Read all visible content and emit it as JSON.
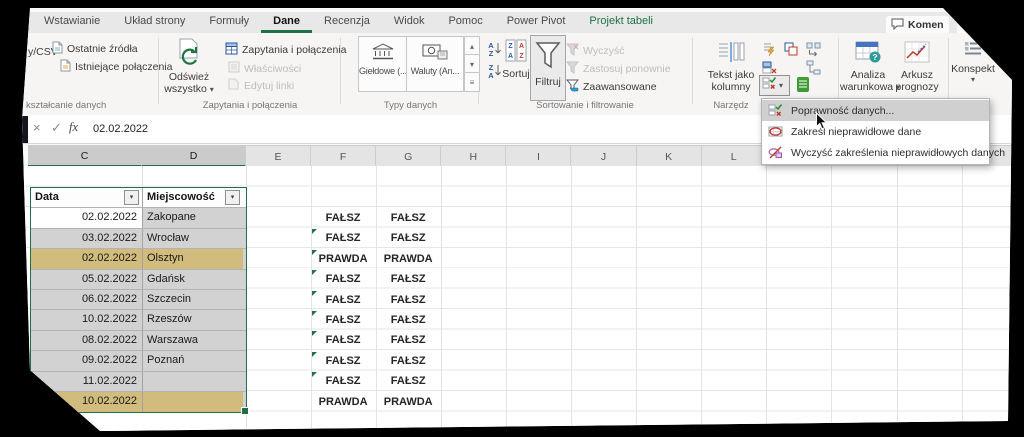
{
  "icons": {
    "dropdown": "▾",
    "up": "▴",
    "down": "▾",
    "more": "≡",
    "cancel": "×",
    "enter": "✓"
  },
  "tab_bar": {
    "tabs": [
      "Wstawianie",
      "Układ strony",
      "Formuły",
      "Dane",
      "Recenzja",
      "Widok",
      "Pomoc",
      "Power Pivot",
      "Projekt tabeli"
    ],
    "active": "Dane",
    "accent_tab": "Projekt tabeli",
    "comments_button": "Komen"
  },
  "ribbon": {
    "csv_partial": "y/CSV",
    "recent_sources": "Ostatnie źródła",
    "existing_connections": "Istniejące połączenia",
    "g1_caption": "kształcanie danych",
    "refresh_line1": "Odśwież",
    "refresh_line2": "wszystko",
    "queries_connections": "Zapytania i połączenia",
    "properties": "Właściwości",
    "edit_links": "Edytuj linki",
    "g2_caption": "Zapytania i połączenia",
    "stocks": "Giełdowe (...",
    "currencies": "Waluty (An...",
    "g3_caption": "Typy danych",
    "sort": "Sortuj",
    "filter": "Filtruj",
    "clear": "Wyczyść",
    "reapply": "Zastosuj ponownie",
    "advanced": "Zaawansowane",
    "g4_caption": "Sortowanie i filtrowanie",
    "text_to_columns_line1": "Tekst jako",
    "text_to_columns_line2": "kolumny",
    "g5_caption": "Narzędz",
    "whatif_line1": "Analiza",
    "whatif_line2": "warunkowa",
    "forecast_line1": "Arkusz",
    "forecast_line2": "prognozy",
    "outline": "Konspekt"
  },
  "formula_bar": {
    "fx_label": "fx",
    "value": "02.02.2022"
  },
  "sheet": {
    "columns": [
      "C",
      "D",
      "E",
      "F",
      "G",
      "H",
      "I",
      "J",
      "K",
      "L"
    ],
    "selected_columns": [
      "C",
      "D"
    ]
  },
  "table": {
    "headers": [
      "Data",
      "Miejscowość"
    ],
    "rows": [
      {
        "date": "02.02.2022",
        "city": "Zakopane",
        "f": "FAŁSZ",
        "g": "FAŁSZ",
        "highlight": false,
        "active": true,
        "triangle": false
      },
      {
        "date": "03.02.2022",
        "city": "Wrocław",
        "f": "FAŁSZ",
        "g": "FAŁSZ",
        "highlight": false,
        "triangle": true
      },
      {
        "date": "02.02.2022",
        "city": "Olsztyn",
        "f": "PRAWDA",
        "g": "PRAWDA",
        "highlight": true,
        "triangle": true
      },
      {
        "date": "05.02.2022",
        "city": "Gdańsk",
        "f": "FAŁSZ",
        "g": "FAŁSZ",
        "highlight": false,
        "triangle": true
      },
      {
        "date": "06.02.2022",
        "city": "Szczecin",
        "f": "FAŁSZ",
        "g": "FAŁSZ",
        "highlight": false,
        "triangle": true
      },
      {
        "date": "10.02.2022",
        "city": "Rzeszów",
        "f": "FAŁSZ",
        "g": "FAŁSZ",
        "highlight": false,
        "triangle": true
      },
      {
        "date": "08.02.2022",
        "city": "Warszawa",
        "f": "FAŁSZ",
        "g": "FAŁSZ",
        "highlight": false,
        "triangle": true
      },
      {
        "date": "09.02.2022",
        "city": "Poznań",
        "f": "FAŁSZ",
        "g": "FAŁSZ",
        "highlight": false,
        "triangle": true
      },
      {
        "date": "11.02.2022",
        "city": "",
        "f": "FAŁSZ",
        "g": "FAŁSZ",
        "highlight": false,
        "triangle": true
      },
      {
        "date": "10.02.2022",
        "city": "",
        "f": "PRAWDA",
        "g": "PRAWDA",
        "highlight": true,
        "triangle": false
      }
    ]
  },
  "dropdown": {
    "hover_index": 0,
    "items": [
      {
        "label": "Poprawność danych...",
        "icon": "validation-icon"
      },
      {
        "label": "Zakreśl nieprawidłowe dane",
        "icon": "mark-invalid-icon"
      },
      {
        "label": "Wyczyść zakreślenia nieprawidłowych danych",
        "icon": "clear-marks-icon"
      }
    ]
  },
  "colors": {
    "accent_green": "#1e7145",
    "highlight_tan": "#d1bb7d",
    "selection_gray": "#d2d2d2"
  }
}
